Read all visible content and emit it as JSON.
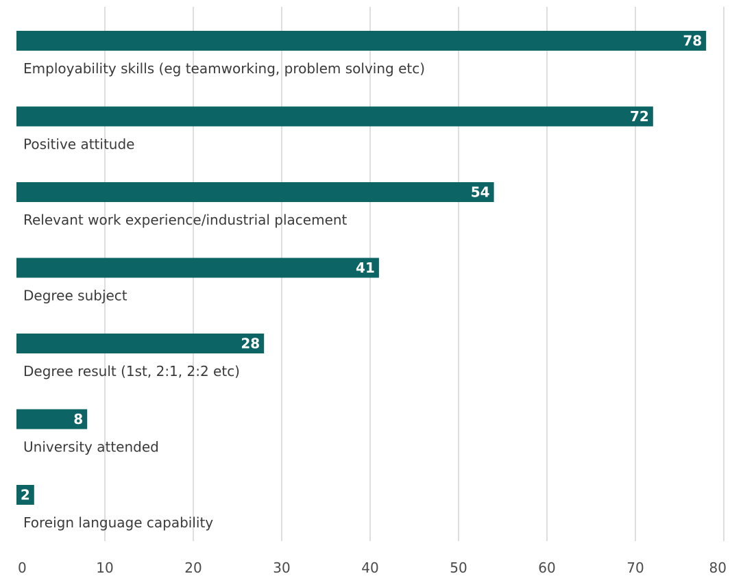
{
  "chart_data": {
    "type": "bar",
    "orientation": "horizontal",
    "categories": [
      "Employability skills (eg teamworking, problem solving etc)",
      "Positive attitude",
      "Relevant work experience/industrial placement",
      "Degree subject",
      "Degree result (1st, 2:1, 2:2 etc)",
      "University attended",
      "Foreign language capability"
    ],
    "values": [
      78,
      72,
      54,
      41,
      28,
      8,
      2
    ],
    "xlim": [
      0,
      80
    ],
    "xticks": [
      0,
      10,
      20,
      30,
      40,
      50,
      60,
      70,
      80
    ],
    "grid": "vertical",
    "bar_color": "#0c6464",
    "value_labels": "inside-end"
  }
}
